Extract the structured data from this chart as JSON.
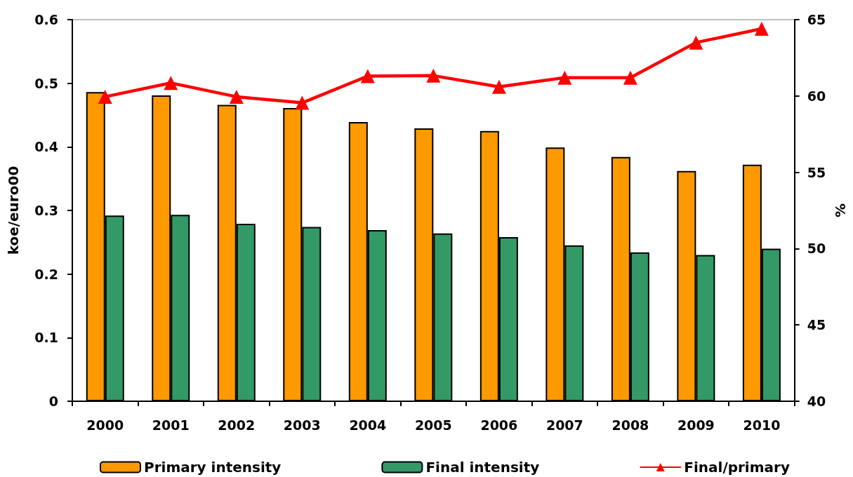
{
  "chart_data": {
    "type": "bar",
    "categories": [
      "2000",
      "2001",
      "2002",
      "2003",
      "2004",
      "2005",
      "2006",
      "2007",
      "2008",
      "2009",
      "2010"
    ],
    "ylabel": "koe/euro00",
    "y2label": "%",
    "ylim": [
      0,
      0.6
    ],
    "yticks": [
      0,
      0.1,
      0.2,
      0.3,
      0.4,
      0.5,
      0.6
    ],
    "y2lim": [
      40,
      65
    ],
    "y2ticks": [
      40,
      45,
      50,
      55,
      60,
      65
    ],
    "series": [
      {
        "name": "Primary intensity",
        "color": "#ff9900",
        "values": [
          0.486,
          0.481,
          0.466,
          0.461,
          0.439,
          0.429,
          0.425,
          0.399,
          0.384,
          0.362,
          0.372
        ]
      },
      {
        "name": "Final intensity",
        "color": "#339966",
        "values": [
          0.292,
          0.293,
          0.279,
          0.274,
          0.269,
          0.264,
          0.258,
          0.245,
          0.234,
          0.23,
          0.24
        ]
      },
      {
        "name": "Final/primary",
        "type": "line",
        "axis": "y2",
        "color": "#ff0000",
        "values": [
          59.95,
          60.85,
          59.95,
          59.55,
          61.3,
          61.33,
          60.6,
          61.2,
          61.2,
          63.5,
          64.4
        ]
      }
    ],
    "marker": "triangle",
    "line_style": "solid",
    "legend": "bottom",
    "grid": false
  }
}
